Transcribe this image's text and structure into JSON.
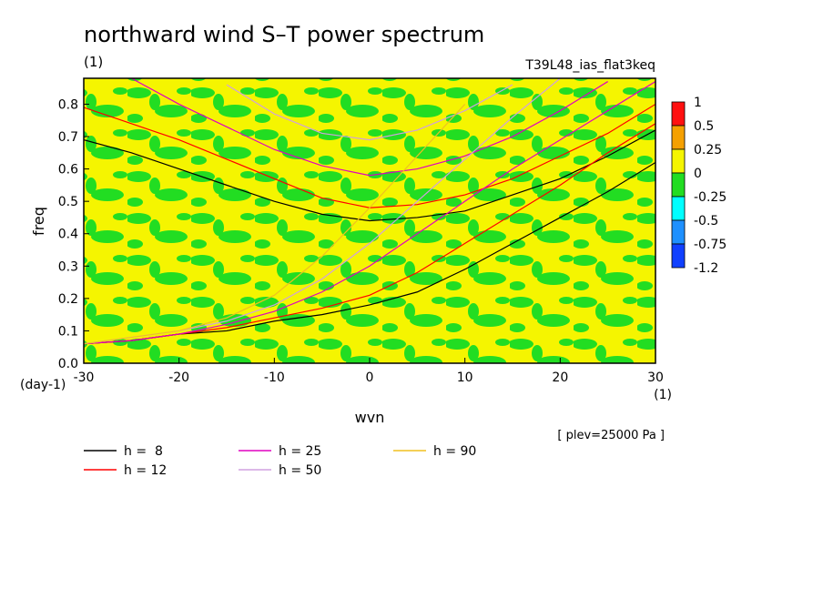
{
  "chart_data": {
    "type": "contour",
    "title": "northward wind S–T power spectrum",
    "subtitle": "(1)",
    "experiment": "T39L48_ias_flat3keq",
    "x_label": "wvn",
    "x_unit": "(1)",
    "y_label": "freq",
    "y_unit": "(day-1)",
    "annotation": "[ plev=25000 Pa ]",
    "xlim": [
      -30,
      30
    ],
    "ylim": [
      0,
      0.88
    ],
    "xticks": [
      -30,
      -20,
      -10,
      0,
      10,
      20,
      30
    ],
    "yticks": [
      {
        "value": 0,
        "label": "0.0"
      },
      0.1,
      0.2,
      0.3,
      0.4,
      0.5,
      0.6,
      0.7,
      0.8
    ],
    "field_color": "#f5f500",
    "field_pattern_color": "#22dd22",
    "colorbar": {
      "levels": [
        1,
        0.5,
        0.25,
        0,
        -0.25,
        -0.5,
        -0.75,
        -1.2
      ],
      "colors": [
        "#ff1010",
        "#f5a000",
        "#f5f500",
        "#22dd22",
        "#00ffff",
        "#1e90ff",
        "#1040ff"
      ]
    },
    "x": [
      -30,
      -25,
      -20,
      -15,
      -10,
      -5,
      0,
      5,
      10,
      15,
      20,
      25,
      30
    ],
    "series": [
      {
        "name": "h =  8",
        "color": "#000000",
        "curves": [
          [
            0.69,
            0.65,
            0.6,
            0.55,
            0.5,
            0.46,
            0.44,
            0.45,
            0.47,
            0.52,
            0.57,
            0.64,
            0.72
          ],
          [
            0.06,
            0.07,
            0.09,
            0.1,
            0.13,
            0.15,
            0.18,
            0.22,
            0.29,
            0.37,
            0.45,
            0.53,
            0.62
          ]
        ]
      },
      {
        "name": "h = 12",
        "color": "#ff0000",
        "curves": [
          [
            0.79,
            0.74,
            0.69,
            0.63,
            0.57,
            0.51,
            0.48,
            0.49,
            0.52,
            0.57,
            0.64,
            0.71,
            0.8
          ],
          [
            0.06,
            0.07,
            0.09,
            0.11,
            0.14,
            0.17,
            0.21,
            0.28,
            0.37,
            0.46,
            0.55,
            0.65,
            0.74
          ]
        ]
      },
      {
        "name": "h = 25",
        "color": "#e000c0",
        "curves": [
          [
            null,
            0.88,
            0.8,
            0.73,
            0.66,
            0.61,
            0.58,
            0.6,
            0.64,
            0.7,
            0.78,
            0.87,
            null
          ],
          [
            0.06,
            0.07,
            0.09,
            0.12,
            0.16,
            0.22,
            0.3,
            0.4,
            0.5,
            0.6,
            0.69,
            0.78,
            0.87
          ]
        ]
      },
      {
        "name": "h = 50",
        "color": "#d0a0e0",
        "curves": [
          [
            null,
            null,
            null,
            0.86,
            0.77,
            0.71,
            0.69,
            0.72,
            0.78,
            0.86,
            null,
            null,
            null
          ],
          [
            0.06,
            0.08,
            0.1,
            0.13,
            0.18,
            0.26,
            0.37,
            0.5,
            0.63,
            0.76,
            0.88,
            null,
            null
          ]
        ]
      },
      {
        "name": "h = 90",
        "color": "#f0c020",
        "curves": [
          [
            0.06,
            0.08,
            0.1,
            0.14,
            0.21,
            0.33,
            0.48,
            0.64,
            0.8,
            null,
            null,
            null,
            null
          ]
        ]
      }
    ]
  }
}
